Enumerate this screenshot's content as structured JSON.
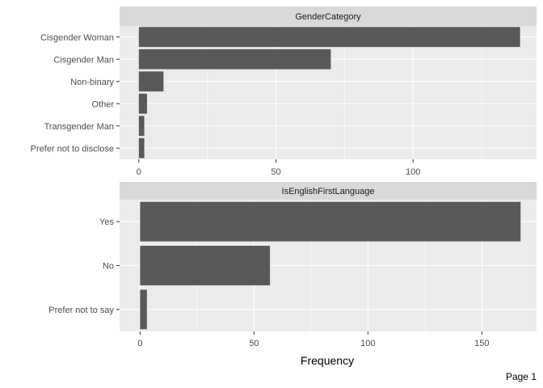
{
  "chart_data": [
    {
      "type": "bar",
      "orientation": "horizontal",
      "title": "GenderCategory",
      "categories": [
        "Cisgender Woman",
        "Cisgender Man",
        "Non-binary",
        "Other",
        "Transgender Man",
        "Prefer not to disclose"
      ],
      "values": [
        139,
        70,
        9,
        3,
        2,
        2
      ],
      "xlim": [
        -7,
        145
      ],
      "xticks": [
        0,
        50,
        100
      ],
      "grid": true
    },
    {
      "type": "bar",
      "orientation": "horizontal",
      "title": "IsEnglishFirstLanguage",
      "categories": [
        "Yes",
        "No",
        "Prefer not to say"
      ],
      "values": [
        167,
        57,
        3
      ],
      "xlim": [
        -9,
        174
      ],
      "xticks": [
        0,
        50,
        100,
        150
      ],
      "grid": true
    }
  ],
  "xlabel": "Frequency",
  "page_label": "Page 1",
  "colors": {
    "bar": "#595959",
    "panel": "#ebebeb",
    "strip": "#d9d9d9",
    "grid": "#ffffff",
    "text": "#4d4d4d"
  }
}
